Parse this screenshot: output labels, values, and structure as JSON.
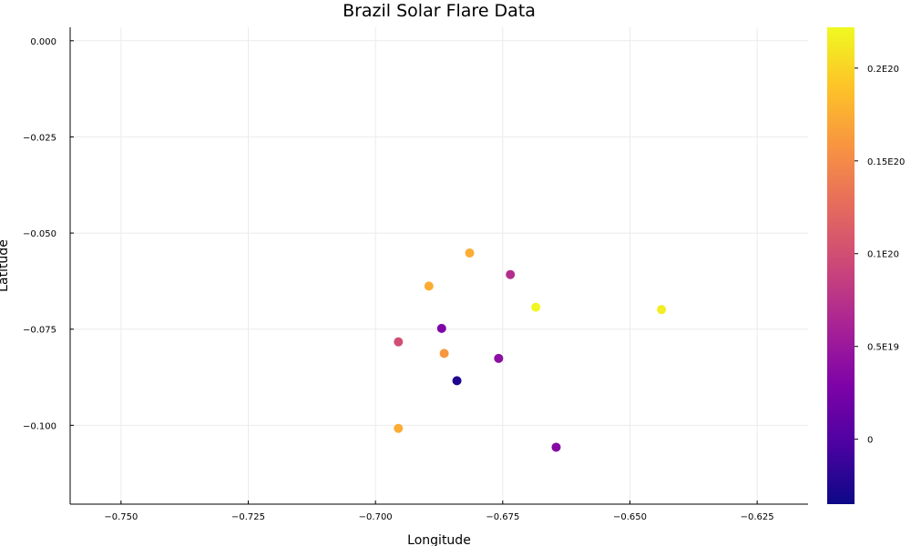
{
  "chart_data": {
    "type": "scatter",
    "title": "Brazil Solar Flare Data",
    "xlabel": "Longitude",
    "ylabel": "Latitude",
    "xlim": [
      -0.76,
      -0.615
    ],
    "ylim": [
      -0.1205,
      0.0035
    ],
    "xticks": [
      -0.75,
      -0.725,
      -0.7,
      -0.675,
      -0.65,
      -0.625
    ],
    "xtick_labels": [
      "−0.750",
      "−0.725",
      "−0.700",
      "−0.675",
      "−0.650",
      "−0.625"
    ],
    "yticks": [
      0.0,
      -0.025,
      -0.05,
      -0.075,
      -0.1
    ],
    "ytick_labels": [
      "0.000",
      "−0.025",
      "−0.050",
      "−0.075",
      "−0.100"
    ],
    "grid": true,
    "legend": "none",
    "colorbar": {
      "colormap": "plasma",
      "range": [
        -3.5e+18,
        2.22e+19
      ],
      "ticks": [
        0,
        5e+18,
        1e+19,
        1.5e+19,
        2e+19
      ],
      "tick_labels": [
        "0",
        "0.5E19",
        "0.1E20",
        "0.15E20",
        "0.2E20"
      ]
    },
    "points": [
      {
        "x": -0.6815,
        "y": -0.0552,
        "c": 1.75e+19
      },
      {
        "x": -0.6735,
        "y": -0.0608,
        "c": 7e+18
      },
      {
        "x": -0.6895,
        "y": -0.0638,
        "c": 1.75e+19
      },
      {
        "x": -0.6685,
        "y": -0.0693,
        "c": 2.2e+19
      },
      {
        "x": -0.6438,
        "y": -0.0699,
        "c": 2.15e+19
      },
      {
        "x": -0.687,
        "y": -0.0748,
        "c": 3e+18
      },
      {
        "x": -0.6955,
        "y": -0.0783,
        "c": 1e+19
      },
      {
        "x": -0.6865,
        "y": -0.0813,
        "c": 1.6e+19
      },
      {
        "x": -0.6758,
        "y": -0.0826,
        "c": 4e+18
      },
      {
        "x": -0.684,
        "y": -0.0884,
        "c": -2.5e+18
      },
      {
        "x": -0.6955,
        "y": -0.1008,
        "c": 1.75e+19
      },
      {
        "x": -0.6645,
        "y": -0.1057,
        "c": 3.5e+18
      }
    ]
  }
}
